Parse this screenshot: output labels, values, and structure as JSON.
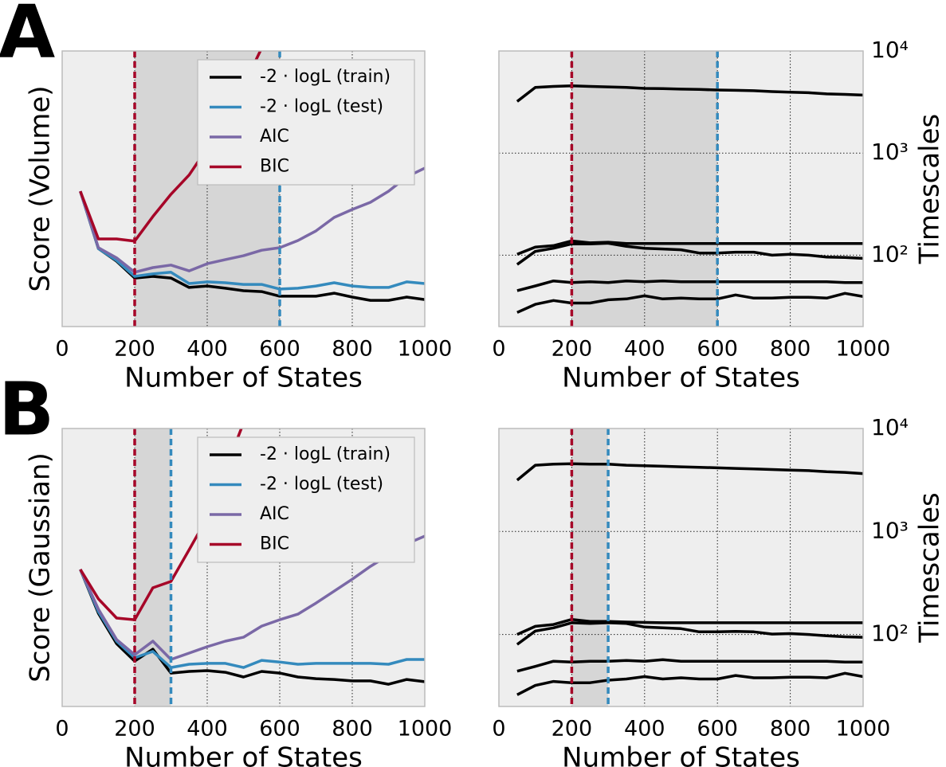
{
  "chart_data": [
    {
      "type": "line",
      "panel_label": "A",
      "ylabel": "Score (Volume)",
      "xlabel": "Number of States",
      "xlim": [
        0,
        1000
      ],
      "xticks": [
        0,
        200,
        400,
        600,
        800,
        1000
      ],
      "ylim": [
        0,
        100
      ],
      "grid_axes": "x",
      "legend": "upper right",
      "span": [
        200,
        600
      ],
      "vlines": [
        {
          "x": 200,
          "color": "#a60628"
        },
        {
          "x": 600,
          "color": "#348abd"
        }
      ],
      "x": [
        50,
        100,
        150,
        200,
        250,
        300,
        350,
        400,
        450,
        500,
        550,
        600,
        650,
        700,
        750,
        800,
        850,
        900,
        950,
        1000
      ],
      "series": [
        {
          "name": "-2 · logL (train)",
          "color": "#000000",
          "values": [
            49.1,
            28.3,
            23.7,
            17.6,
            18.2,
            17.6,
            14.2,
            14.7,
            13.9,
            13.0,
            12.7,
            11.0,
            11.0,
            11.0,
            12.1,
            10.7,
            9.5,
            9.5,
            10.7,
            9.8
          ]
        },
        {
          "name": "-2 · logL (test)",
          "color": "#348abd",
          "values": [
            49.1,
            28.3,
            24.0,
            18.2,
            19.1,
            19.7,
            15.6,
            16.2,
            15.9,
            15.3,
            15.3,
            13.6,
            13.9,
            14.7,
            15.9,
            14.7,
            14.2,
            14.2,
            16.2,
            15.6
          ]
        },
        {
          "name": "AIC",
          "color": "#7a68a6",
          "values": [
            49.1,
            28.6,
            24.9,
            19.7,
            21.4,
            22.3,
            20.2,
            22.8,
            24.3,
            25.7,
            27.7,
            28.6,
            31.2,
            34.7,
            39.6,
            42.5,
            45.1,
            49.1,
            54.3,
            57.5
          ]
        },
        {
          "name": "BIC",
          "color": "#a60628",
          "values": [
            49.1,
            31.8,
            31.8,
            31.0,
            39.9,
            48.0,
            55.0,
            64.7,
            75.1,
            87.3,
            101,
            null,
            null,
            null,
            null,
            null,
            null,
            null,
            null,
            null
          ]
        }
      ]
    },
    {
      "type": "line",
      "yscale": "log",
      "yaxis_side": "right",
      "ylabel": "Timescales",
      "xlabel": "Number of States",
      "xlim": [
        0,
        1000
      ],
      "xticks": [
        0,
        200,
        400,
        600,
        800,
        1000
      ],
      "ylim": [
        20,
        10000
      ],
      "yticks": [
        {
          "value": 100,
          "label": "10²"
        },
        {
          "value": 1000,
          "label": "10³"
        },
        {
          "value": 10000,
          "label": "10⁴"
        }
      ],
      "grid_axes": "both",
      "span": [
        200,
        600
      ],
      "vlines": [
        {
          "x": 200,
          "color": "#a60628"
        },
        {
          "x": 600,
          "color": "#348abd"
        }
      ],
      "x": [
        50,
        100,
        150,
        200,
        250,
        300,
        350,
        400,
        450,
        500,
        550,
        600,
        650,
        700,
        750,
        800,
        850,
        900,
        950,
        1000
      ],
      "series": [
        {
          "color": "#000000",
          "values": [
            3200,
            4400,
            4500,
            4550,
            4500,
            4450,
            4400,
            4300,
            4280,
            4230,
            4200,
            4150,
            4120,
            4080,
            4000,
            3950,
            3900,
            3800,
            3760,
            3700
          ]
        },
        {
          "color": "#000000",
          "values": [
            102,
            120,
            124,
            138,
            132,
            134,
            130,
            130,
            130,
            130,
            130,
            130,
            130,
            130,
            130,
            130,
            130,
            130,
            130,
            130
          ]
        },
        {
          "color": "#000000",
          "values": [
            81,
            109,
            117,
            129,
            129,
            131,
            122,
            117,
            115,
            113,
            105,
            105,
            107,
            107,
            100,
            102,
            100,
            96,
            95,
            93
          ]
        },
        {
          "color": "#000000",
          "values": [
            45,
            50,
            56,
            54,
            55,
            54,
            56,
            55,
            56,
            55,
            55,
            55,
            55,
            55,
            55,
            55,
            55,
            55,
            54,
            54
          ]
        },
        {
          "color": "#000000",
          "values": [
            27.5,
            33,
            36,
            34,
            34,
            36.6,
            37.3,
            40,
            37.3,
            38,
            37.3,
            37.3,
            40.8,
            38,
            38,
            38.7,
            38.7,
            38,
            42.3,
            39.4
          ]
        }
      ]
    },
    {
      "type": "line",
      "panel_label": "B",
      "ylabel": "Score (Gaussian)",
      "xlabel": "Number of States",
      "xlim": [
        0,
        1000
      ],
      "xticks": [
        0,
        200,
        400,
        600,
        800,
        1000
      ],
      "ylim": [
        0,
        100
      ],
      "grid_axes": "x",
      "legend": "upper right",
      "span": [
        200,
        300
      ],
      "vlines": [
        {
          "x": 200,
          "color": "#a60628"
        },
        {
          "x": 300,
          "color": "#348abd"
        }
      ],
      "x": [
        50,
        100,
        150,
        200,
        250,
        300,
        350,
        400,
        450,
        500,
        550,
        600,
        650,
        700,
        750,
        800,
        850,
        900,
        950,
        1000
      ],
      "series": [
        {
          "name": "-2 · logL (train)",
          "color": "#000000",
          "values": [
            49.3,
            33.5,
            22.6,
            16.3,
            20.6,
            12.0,
            12.6,
            12.9,
            12.3,
            10.6,
            12.6,
            12.0,
            10.6,
            10.0,
            9.7,
            9.2,
            9.2,
            8.0,
            9.7,
            8.9
          ]
        },
        {
          "name": "-2 · logL (test)",
          "color": "#348abd",
          "values": [
            49.3,
            34.1,
            23.5,
            17.5,
            19.8,
            14.0,
            15.2,
            15.5,
            15.5,
            14.0,
            16.6,
            16.0,
            15.2,
            15.5,
            15.5,
            15.5,
            15.5,
            15.2,
            16.9,
            16.9
          ]
        },
        {
          "name": "AIC",
          "color": "#7a68a6",
          "values": [
            49.3,
            35.0,
            24.1,
            18.6,
            23.5,
            16.9,
            19.2,
            21.5,
            23.5,
            24.9,
            28.9,
            31.2,
            33.2,
            37.2,
            41.5,
            45.8,
            50.4,
            54.4,
            58.5,
            61.3
          ]
        },
        {
          "name": "BIC",
          "color": "#a60628",
          "values": [
            49.3,
            38.7,
            31.8,
            31.2,
            42.7,
            45.0,
            56.4,
            67.9,
            85.1,
            102,
            null,
            null,
            null,
            null,
            null,
            null,
            null,
            null,
            null,
            null
          ]
        }
      ]
    },
    {
      "type": "line",
      "yscale": "log",
      "yaxis_side": "right",
      "ylabel": "Timescales",
      "xlabel": "Number of States",
      "xlim": [
        0,
        1000
      ],
      "xticks": [
        0,
        200,
        400,
        600,
        800,
        1000
      ],
      "ylim": [
        20,
        10000
      ],
      "yticks": [
        {
          "value": 100,
          "label": "10²"
        },
        {
          "value": 1000,
          "label": "10³"
        },
        {
          "value": 10000,
          "label": "10⁴"
        }
      ],
      "grid_axes": "both",
      "span": [
        200,
        300
      ],
      "vlines": [
        {
          "x": 200,
          "color": "#a60628"
        },
        {
          "x": 300,
          "color": "#348abd"
        }
      ],
      "x": [
        50,
        100,
        150,
        200,
        250,
        300,
        350,
        400,
        450,
        500,
        550,
        600,
        650,
        700,
        750,
        800,
        850,
        900,
        950,
        1000
      ],
      "series": [
        {
          "color": "#000000",
          "values": [
            3150,
            4400,
            4500,
            4550,
            4500,
            4500,
            4400,
            4350,
            4300,
            4250,
            4200,
            4150,
            4100,
            4050,
            4000,
            3950,
            3900,
            3800,
            3750,
            3650
          ]
        },
        {
          "color": "#000000",
          "values": [
            100,
            120,
            125,
            140,
            134,
            134,
            132,
            131,
            130,
            130,
            130,
            130,
            130,
            130,
            130,
            130,
            130,
            130,
            130,
            130
          ]
        },
        {
          "color": "#000000",
          "values": [
            80,
            108,
            116,
            130,
            128,
            130,
            128,
            118,
            116,
            114,
            106,
            106,
            107,
            106,
            101,
            102,
            100,
            97,
            95,
            94
          ]
        },
        {
          "color": "#000000",
          "values": [
            44,
            49,
            55,
            54,
            55,
            55,
            56,
            55,
            57,
            55,
            55,
            55,
            55,
            55,
            55,
            55,
            55,
            55,
            54,
            54
          ]
        },
        {
          "color": "#000000",
          "values": [
            26,
            32,
            35,
            34,
            34,
            36,
            37,
            39,
            37,
            38,
            37,
            37,
            40,
            38,
            38,
            38.5,
            38.5,
            38,
            42,
            39
          ]
        }
      ]
    }
  ]
}
